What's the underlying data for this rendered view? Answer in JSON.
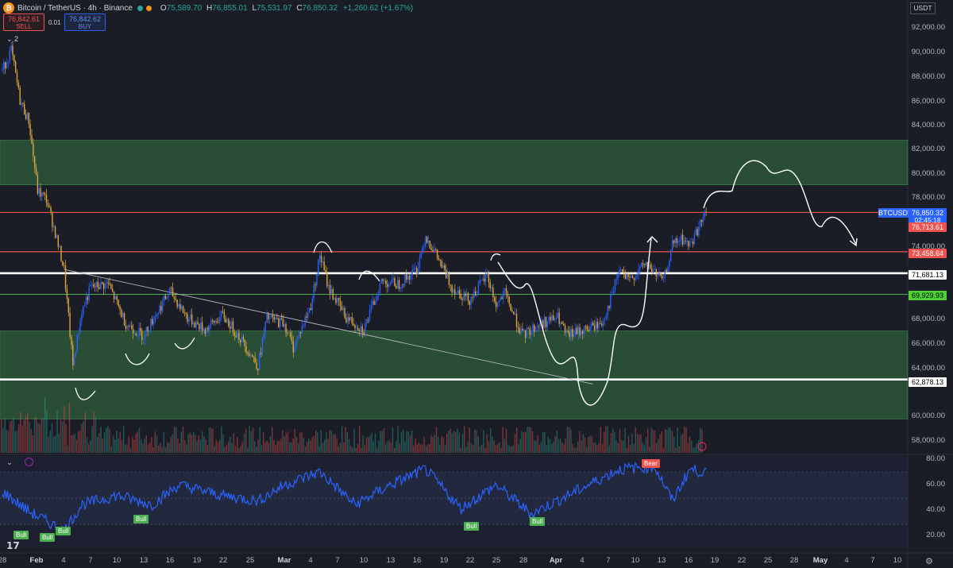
{
  "header": {
    "logo_glyph": "₿",
    "symbol_title": "Bitcoin / TetherUS · 4h · Binance",
    "ohlc": {
      "o_label": "O",
      "o": "75,589.70",
      "h_label": "H",
      "h": "76,855.01",
      "l_label": "L",
      "l": "75,531.97",
      "c_label": "C",
      "c": "76,850.32",
      "change": "+1,260.62 (+1.67%)"
    },
    "sell": {
      "price": "76,842.61",
      "label": "SELL"
    },
    "spread": "0.01",
    "buy": {
      "price": "76,842.62",
      "label": "BUY"
    },
    "indicator_count": "2",
    "currency": "USDT"
  },
  "price_axis": [
    "92,000.00",
    "90,000.00",
    "88,000.00",
    "86,000.00",
    "84,000.00",
    "82,000.00",
    "80,000.00",
    "78,000.00",
    "74,000.00",
    "68,000.00",
    "66,000.00",
    "64,000.00",
    "60,000.00",
    "58,000.00"
  ],
  "price_tags": {
    "symbol": "BTCUSDT",
    "last": "76,850.32",
    "countdown": "02:45:18",
    "red_upper": "76,713.61",
    "red_lower": "73,458.64",
    "white_upper": "71,681.13",
    "green": "69,929.93",
    "white_lower": "62,878.13"
  },
  "rsi_axis": [
    "80.00",
    "60.00",
    "40.00",
    "20.00"
  ],
  "rsi_badges": [
    "Bull",
    "Bull",
    "Bull",
    "Bull",
    "Bull",
    "Bull",
    "Bear"
  ],
  "time_axis": [
    "Feb",
    "4",
    "7",
    "10",
    "13",
    "16",
    "19",
    "22",
    "25",
    "Mar",
    "4",
    "7",
    "10",
    "13",
    "16",
    "19",
    "22",
    "25",
    "28",
    "Apr",
    "4",
    "7",
    "10",
    "13",
    "16",
    "19",
    "22",
    "25",
    "28",
    "May",
    "4",
    "7",
    "10"
  ],
  "time_axis_edge": "28",
  "colors": {
    "background": "#1a1d26",
    "up": "#26a69a",
    "down": "#ef5350",
    "zone_green": "#2e5f3a",
    "rsi_line": "#2962ff",
    "support_line": "#ffffff",
    "resistance_line": "#ef5350"
  },
  "icons": {
    "rsi_settings": "chevron-icon",
    "rsi_link": "circle-icon",
    "axis_settings": "gear-icon",
    "footer_logo": "tv-logo-icon"
  },
  "chart_data": {
    "type": "candlestick",
    "symbol": "BTCUSDT",
    "timeframe": "4h",
    "price_range": [
      56800,
      93000
    ],
    "levels": {
      "zone_top": [
        79000,
        82700
      ],
      "zone_mid": [
        62878,
        66900
      ],
      "zone_bottom": [
        59600,
        62878
      ],
      "red_upper": 76713.61,
      "red_lower": 73458.64,
      "white_upper": 71681.13,
      "green": 69929.93,
      "white_lower": 62878.13
    },
    "price_path": [
      {
        "x": "Jan 28",
        "y": 88500
      },
      {
        "x": "Jan 29",
        "y": 90200
      },
      {
        "x": "Jan 30",
        "y": 86000
      },
      {
        "x": "Jan 31",
        "y": 84300
      },
      {
        "x": "Feb 1",
        "y": 78500
      },
      {
        "x": "Feb 2",
        "y": 77800
      },
      {
        "x": "Feb 3",
        "y": 75000
      },
      {
        "x": "Feb 4",
        "y": 72000
      },
      {
        "x": "Feb 5",
        "y": 64000
      },
      {
        "x": "Feb 6",
        "y": 68500
      },
      {
        "x": "Feb 7",
        "y": 70500
      },
      {
        "x": "Feb 9",
        "y": 70800
      },
      {
        "x": "Feb 11",
        "y": 67500
      },
      {
        "x": "Feb 13",
        "y": 66500
      },
      {
        "x": "Feb 15",
        "y": 69000
      },
      {
        "x": "Feb 16",
        "y": 70200
      },
      {
        "x": "Feb 18",
        "y": 68000
      },
      {
        "x": "Feb 20",
        "y": 67000
      },
      {
        "x": "Feb 22",
        "y": 68200
      },
      {
        "x": "Feb 24",
        "y": 66300
      },
      {
        "x": "Feb 26",
        "y": 64000
      },
      {
        "x": "Feb 27",
        "y": 68000
      },
      {
        "x": "Mar 1",
        "y": 67500
      },
      {
        "x": "Mar 2",
        "y": 65500
      },
      {
        "x": "Mar 4",
        "y": 69000
      },
      {
        "x": "Mar 5",
        "y": 73200
      },
      {
        "x": "Mar 6",
        "y": 70500
      },
      {
        "x": "Mar 8",
        "y": 68000
      },
      {
        "x": "Mar 10",
        "y": 67000
      },
      {
        "x": "Mar 12",
        "y": 71000
      },
      {
        "x": "Mar 14",
        "y": 70800
      },
      {
        "x": "Mar 16",
        "y": 72000
      },
      {
        "x": "Mar 17",
        "y": 74800
      },
      {
        "x": "Mar 18",
        "y": 73500
      },
      {
        "x": "Mar 20",
        "y": 70500
      },
      {
        "x": "Mar 22",
        "y": 69500
      },
      {
        "x": "Mar 24",
        "y": 71500
      },
      {
        "x": "Mar 25",
        "y": 69000
      },
      {
        "x": "Mar 26",
        "y": 70000
      },
      {
        "x": "Mar 28",
        "y": 66500
      },
      {
        "x": "Mar 30",
        "y": 67500
      },
      {
        "x": "Apr 1",
        "y": 68000
      },
      {
        "x": "Apr 2",
        "y": 66500
      },
      {
        "x": "Apr 4",
        "y": 67000
      },
      {
        "x": "Apr 6",
        "y": 67500
      },
      {
        "x": "Apr 7",
        "y": 69500
      },
      {
        "x": "Apr 8",
        "y": 72000
      },
      {
        "x": "Apr 9",
        "y": 71000
      },
      {
        "x": "Apr 11",
        "y": 72500
      },
      {
        "x": "Apr 13",
        "y": 71000
      },
      {
        "x": "Apr 14",
        "y": 74000
      },
      {
        "x": "Apr 15",
        "y": 74500
      },
      {
        "x": "Apr 16",
        "y": 74000
      },
      {
        "x": "Apr 17",
        "y": 75500
      },
      {
        "x": "Apr 18",
        "y": 76850
      }
    ],
    "rsi_path": [
      {
        "x": "Jan 28",
        "y": 55
      },
      {
        "x": "Jan 31",
        "y": 40
      },
      {
        "x": "Feb 4",
        "y": 25
      },
      {
        "x": "Feb 6",
        "y": 45
      },
      {
        "x": "Feb 10",
        "y": 52
      },
      {
        "x": "Feb 14",
        "y": 45
      },
      {
        "x": "Feb 17",
        "y": 60
      },
      {
        "x": "Feb 22",
        "y": 52
      },
      {
        "x": "Feb 26",
        "y": 48
      },
      {
        "x": "Mar 1",
        "y": 60
      },
      {
        "x": "Mar 5",
        "y": 70
      },
      {
        "x": "Mar 9",
        "y": 45
      },
      {
        "x": "Mar 13",
        "y": 60
      },
      {
        "x": "Mar 17",
        "y": 72
      },
      {
        "x": "Mar 21",
        "y": 42
      },
      {
        "x": "Mar 25",
        "y": 60
      },
      {
        "x": "Mar 29",
        "y": 38
      },
      {
        "x": "Apr 3",
        "y": 55
      },
      {
        "x": "Apr 8",
        "y": 72
      },
      {
        "x": "Apr 12",
        "y": 74
      },
      {
        "x": "Apr 14",
        "y": 48
      },
      {
        "x": "Apr 16",
        "y": 72
      },
      {
        "x": "Apr 18",
        "y": 69
      }
    ],
    "rsi_range": [
      12,
      82
    ]
  }
}
